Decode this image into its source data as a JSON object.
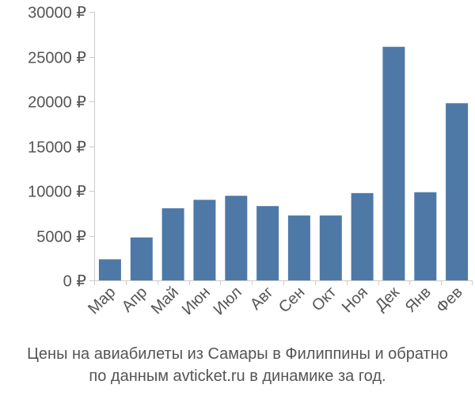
{
  "chart_data": {
    "type": "bar",
    "categories": [
      "Мар",
      "Апр",
      "Май",
      "Июн",
      "Июл",
      "Авг",
      "Сен",
      "Окт",
      "Ноя",
      "Дек",
      "Янв",
      "Фев"
    ],
    "values": [
      2350,
      4800,
      8050,
      9000,
      9450,
      8300,
      7250,
      7250,
      9750,
      26100,
      9850,
      19800
    ],
    "ylim": [
      0,
      30000
    ],
    "yticks": [
      0,
      5000,
      10000,
      15000,
      20000,
      25000,
      30000
    ],
    "ytick_labels": [
      "0 ₽",
      "5000 ₽",
      "10000 ₽",
      "15000 ₽",
      "20000 ₽",
      "25000 ₽",
      "30000 ₽"
    ],
    "bar_color": "#4e79a7",
    "grid": false
  },
  "caption": {
    "line1": "Цены на авиабилеты из Самары в Филиппины и обратно",
    "line2": "по данным avticket.ru в динамике за год."
  }
}
